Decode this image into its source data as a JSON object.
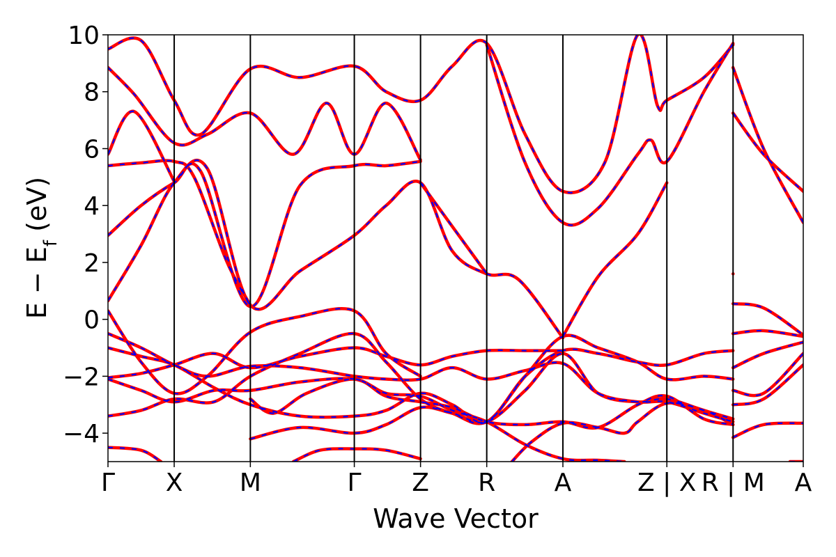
{
  "chart_data": {
    "type": "line",
    "xlabel": "Wave Vector",
    "ylabel_main": "E − E",
    "ylabel_sub": "f",
    "ylabel_unit": "(eV)",
    "ylim": [
      -5,
      10
    ],
    "yticks": [
      -4,
      -2,
      0,
      2,
      4,
      6,
      8,
      10
    ],
    "ytick_labels": [
      "−4",
      "−2",
      "0",
      "2",
      "4",
      "6",
      "8",
      "10"
    ],
    "xlim": [
      0,
      10.5
    ],
    "kpoints": [
      {
        "label": "Γ",
        "x": 0
      },
      {
        "label": "X",
        "x": 1
      },
      {
        "label": "M",
        "x": 2.15
      },
      {
        "label": "Γ",
        "x": 3.72
      },
      {
        "label": "Z",
        "x": 4.72
      },
      {
        "label": "R",
        "x": 5.72
      },
      {
        "label": "A",
        "x": 6.87
      },
      {
        "label": "Z | X",
        "x": 8.44
      },
      {
        "label": "R | M",
        "x": 9.44
      },
      {
        "label": "A",
        "x": 10.5
      }
    ],
    "breaks": [
      8.44,
      9.44
    ],
    "grid": false,
    "legend": "none",
    "colors": {
      "series_a": "#0000ff",
      "series_b": "#ff0000"
    },
    "bands": [
      {
        "points": [
          [
            0,
            0.65
          ],
          [
            0.5,
            2.6
          ],
          [
            1,
            4.8
          ],
          [
            1.5,
            5.3
          ],
          [
            2.15,
            0.5
          ],
          [
            2.9,
            1.7
          ],
          [
            3.72,
            2.95
          ],
          [
            4.2,
            4.0
          ],
          [
            4.72,
            4.8
          ],
          [
            5.2,
            2.4
          ],
          [
            5.72,
            1.6
          ],
          [
            6.2,
            1.4
          ],
          [
            6.87,
            -0.65
          ]
        ]
      },
      {
        "points": [
          [
            0,
            2.95
          ],
          [
            0.5,
            4.0
          ],
          [
            1,
            4.8
          ],
          [
            1.4,
            5.2
          ],
          [
            2.15,
            0.45
          ],
          [
            2.9,
            4.7
          ],
          [
            3.72,
            5.4
          ],
          [
            4.2,
            5.4
          ],
          [
            4.72,
            5.55
          ]
        ]
      },
      {
        "points": [
          [
            0,
            5.4
          ],
          [
            0.5,
            5.5
          ],
          [
            1,
            5.55
          ],
          [
            1.3,
            5.0
          ],
          [
            1.8,
            2.0
          ],
          [
            2.15,
            0.5
          ]
        ]
      },
      {
        "points": [
          [
            0,
            5.8
          ],
          [
            0.4,
            7.3
          ],
          [
            1,
            4.85
          ]
        ]
      },
      {
        "points": [
          [
            0,
            8.85
          ],
          [
            0.4,
            7.9
          ],
          [
            1,
            6.2
          ],
          [
            1.5,
            6.5
          ],
          [
            2.15,
            7.25
          ],
          [
            2.8,
            5.8
          ],
          [
            3.3,
            7.6
          ],
          [
            3.72,
            5.8
          ],
          [
            4.2,
            7.6
          ],
          [
            4.72,
            5.6
          ]
        ]
      },
      {
        "points": [
          [
            0,
            9.5
          ],
          [
            0.5,
            9.8
          ],
          [
            1,
            7.7
          ],
          [
            1.4,
            6.5
          ],
          [
            2.15,
            8.8
          ],
          [
            2.9,
            8.5
          ],
          [
            3.72,
            8.9
          ],
          [
            4.2,
            8.0
          ],
          [
            4.72,
            7.7
          ],
          [
            5.2,
            8.9
          ],
          [
            5.72,
            9.7
          ],
          [
            6.3,
            6.5
          ],
          [
            6.87,
            4.5
          ],
          [
            7.5,
            5.5
          ],
          [
            8.0,
            10.0
          ],
          [
            8.3,
            7.5
          ],
          [
            8.44,
            7.7
          ],
          [
            9.0,
            8.5
          ],
          [
            9.44,
            9.65
          ]
        ]
      },
      {
        "points": [
          [
            5.72,
            9.65
          ],
          [
            6.3,
            5.5
          ],
          [
            6.87,
            3.4
          ],
          [
            7.4,
            3.9
          ],
          [
            8.0,
            5.8
          ],
          [
            8.2,
            6.3
          ],
          [
            8.44,
            5.55
          ],
          [
            9.0,
            8.0
          ],
          [
            9.44,
            9.7
          ]
        ]
      },
      {
        "points": [
          [
            4.72,
            4.8
          ],
          [
            5.72,
            1.6
          ]
        ]
      },
      {
        "points": [
          [
            6.87,
            -0.6
          ],
          [
            7.4,
            1.5
          ],
          [
            8.0,
            3.0
          ],
          [
            8.44,
            4.8
          ]
        ]
      },
      {
        "points": [
          [
            9.44,
            1.6
          ]
        ]
      },
      {
        "points": [
          [
            9.44,
            7.25
          ],
          [
            9.9,
            5.8
          ],
          [
            10.5,
            4.5
          ]
        ]
      },
      {
        "points": [
          [
            9.44,
            8.85
          ],
          [
            9.9,
            6.0
          ],
          [
            10.5,
            3.4
          ]
        ]
      },
      {
        "points": [
          [
            9.44,
            0.55
          ],
          [
            9.9,
            0.4
          ],
          [
            10.5,
            -0.55
          ]
        ]
      },
      {
        "points": [
          [
            0,
            0.3
          ],
          [
            0.5,
            -1.5
          ],
          [
            1,
            -2.6
          ],
          [
            1.5,
            -2.0
          ],
          [
            2.15,
            -0.45
          ],
          [
            2.9,
            0.1
          ],
          [
            3.72,
            0.3
          ],
          [
            4.2,
            -1.2
          ],
          [
            4.72,
            -2.0
          ]
        ]
      },
      {
        "points": [
          [
            0,
            -0.5
          ],
          [
            0.5,
            -1.0
          ],
          [
            1,
            -1.6
          ],
          [
            1.5,
            -2.0
          ],
          [
            2.15,
            -1.65
          ],
          [
            2.9,
            -1.7
          ],
          [
            3.72,
            -2.0
          ],
          [
            4.2,
            -2.1
          ],
          [
            4.72,
            -2.1
          ],
          [
            5.2,
            -1.7
          ],
          [
            5.72,
            -2.1
          ],
          [
            6.3,
            -1.8
          ],
          [
            6.87,
            -1.55
          ],
          [
            7.4,
            -2.6
          ],
          [
            8.0,
            -2.9
          ],
          [
            8.44,
            -2.9
          ],
          [
            9.0,
            -3.3
          ],
          [
            9.44,
            -3.6
          ]
        ]
      },
      {
        "points": [
          [
            0,
            -1.0
          ],
          [
            0.5,
            -1.3
          ],
          [
            1,
            -1.6
          ],
          [
            1.6,
            -2.4
          ],
          [
            2.15,
            -3.0
          ],
          [
            2.9,
            -3.4
          ],
          [
            3.72,
            -3.4
          ],
          [
            4.2,
            -3.2
          ],
          [
            4.72,
            -2.6
          ],
          [
            5.2,
            -3.0
          ],
          [
            5.72,
            -3.6
          ],
          [
            6.3,
            -2.0
          ],
          [
            6.87,
            -1.1
          ],
          [
            7.4,
            -1.2
          ],
          [
            8.0,
            -1.5
          ],
          [
            8.44,
            -1.6
          ],
          [
            9.0,
            -1.2
          ],
          [
            9.44,
            -1.1
          ]
        ]
      },
      {
        "points": [
          [
            0,
            -2.05
          ],
          [
            0.5,
            -1.9
          ],
          [
            1,
            -1.6
          ],
          [
            1.6,
            -1.2
          ],
          [
            2.15,
            -1.7
          ],
          [
            2.9,
            -1.3
          ],
          [
            3.72,
            -1.0
          ],
          [
            4.2,
            -1.3
          ],
          [
            4.72,
            -1.6
          ],
          [
            5.2,
            -1.3
          ],
          [
            5.72,
            -1.1
          ],
          [
            6.3,
            -1.1
          ],
          [
            6.87,
            -1.1
          ]
        ]
      },
      {
        "points": [
          [
            0,
            -2.1
          ],
          [
            0.5,
            -2.5
          ],
          [
            1,
            -2.9
          ],
          [
            1.6,
            -2.5
          ],
          [
            2.15,
            -2.5
          ],
          [
            2.9,
            -2.2
          ],
          [
            3.72,
            -2.1
          ],
          [
            4.2,
            -2.6
          ],
          [
            4.72,
            -2.7
          ],
          [
            5.2,
            -3.2
          ],
          [
            5.72,
            -3.6
          ],
          [
            6.3,
            -4.4
          ],
          [
            6.87,
            -4.9
          ],
          [
            7.4,
            -4.95
          ],
          [
            7.8,
            -5.0
          ]
        ]
      },
      {
        "points": [
          [
            0,
            -3.4
          ],
          [
            0.5,
            -3.2
          ],
          [
            1,
            -2.8
          ],
          [
            1.6,
            -2.9
          ],
          [
            2.15,
            -2.0
          ],
          [
            2.9,
            -1.2
          ],
          [
            3.72,
            -0.5
          ],
          [
            4.2,
            -1.5
          ],
          [
            4.72,
            -2.8
          ],
          [
            5.2,
            -3.3
          ],
          [
            5.72,
            -3.6
          ],
          [
            6.3,
            -2.0
          ],
          [
            6.87,
            -0.6
          ],
          [
            7.4,
            -1.0
          ],
          [
            8.0,
            -1.5
          ],
          [
            8.44,
            -2.1
          ],
          [
            9.0,
            -2.0
          ],
          [
            9.44,
            -2.1
          ]
        ]
      },
      {
        "points": [
          [
            0,
            -4.5
          ],
          [
            0.5,
            -4.6
          ],
          [
            0.8,
            -5.0
          ]
        ]
      },
      {
        "points": [
          [
            2.15,
            -2.8
          ],
          [
            2.5,
            -3.3
          ],
          [
            3.0,
            -2.6
          ],
          [
            3.72,
            -2.1
          ],
          [
            4.2,
            -2.7
          ],
          [
            4.72,
            -2.9
          ],
          [
            5.2,
            -3.1
          ],
          [
            5.72,
            -3.6
          ],
          [
            6.3,
            -3.7
          ],
          [
            6.87,
            -3.6
          ],
          [
            7.4,
            -3.8
          ],
          [
            8.0,
            -3.0
          ],
          [
            8.44,
            -2.7
          ],
          [
            9.0,
            -3.5
          ],
          [
            9.44,
            -3.7
          ]
        ]
      },
      {
        "points": [
          [
            2.15,
            -4.2
          ],
          [
            2.9,
            -3.8
          ],
          [
            3.72,
            -4.0
          ],
          [
            4.2,
            -3.7
          ],
          [
            4.72,
            -3.1
          ],
          [
            5.2,
            -3.3
          ],
          [
            5.72,
            -3.6
          ],
          [
            6.3,
            -2.5
          ],
          [
            6.87,
            -1.2
          ],
          [
            7.4,
            -2.6
          ],
          [
            8.0,
            -2.9
          ],
          [
            8.44,
            -2.8
          ],
          [
            9.0,
            -3.2
          ],
          [
            9.44,
            -3.5
          ]
        ]
      },
      {
        "points": [
          [
            2.8,
            -5.0
          ],
          [
            3.2,
            -4.6
          ],
          [
            3.72,
            -4.55
          ],
          [
            4.2,
            -4.6
          ],
          [
            4.72,
            -4.9
          ]
        ]
      },
      {
        "points": [
          [
            6.1,
            -5.0
          ],
          [
            6.4,
            -4.3
          ],
          [
            6.87,
            -3.65
          ],
          [
            7.4,
            -3.8
          ],
          [
            7.8,
            -4.0
          ],
          [
            8.0,
            -3.6
          ],
          [
            8.44,
            -2.95
          ],
          [
            9.0,
            -3.2
          ],
          [
            9.44,
            -3.7
          ]
        ]
      },
      {
        "points": [
          [
            9.44,
            -0.5
          ],
          [
            9.9,
            -0.4
          ],
          [
            10.5,
            -0.6
          ]
        ]
      },
      {
        "points": [
          [
            9.44,
            -1.7
          ],
          [
            9.9,
            -1.2
          ],
          [
            10.5,
            -0.8
          ]
        ]
      },
      {
        "points": [
          [
            9.44,
            -2.5
          ],
          [
            9.9,
            -2.6
          ],
          [
            10.5,
            -1.2
          ]
        ]
      },
      {
        "points": [
          [
            9.44,
            -3.0
          ],
          [
            9.9,
            -2.8
          ],
          [
            10.5,
            -1.6
          ]
        ]
      },
      {
        "points": [
          [
            9.44,
            -4.15
          ],
          [
            9.9,
            -3.7
          ],
          [
            10.5,
            -3.65
          ]
        ]
      },
      {
        "points": [
          [
            10.3,
            -5.0
          ],
          [
            10.5,
            -5.0
          ]
        ]
      }
    ]
  }
}
